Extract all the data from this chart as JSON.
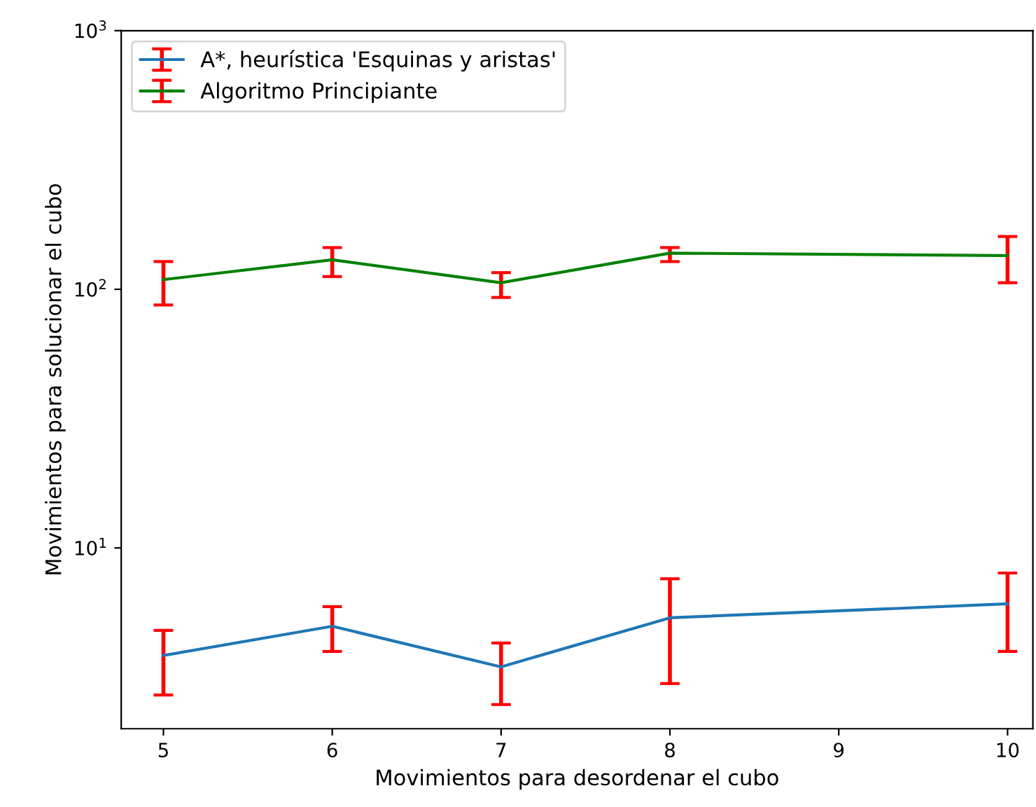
{
  "chart_data": {
    "type": "line",
    "xlabel": "Movimientos para desordenar el cubo",
    "ylabel": "Movimientos para solucionar el cubo",
    "log": "y",
    "xlim": [
      4.75,
      10.15
    ],
    "xticks": [
      5,
      6,
      7,
      8,
      9,
      10
    ],
    "ylim": [
      2,
      1000
    ],
    "yticks": [
      {
        "value": 10,
        "label": "10$^{1}$"
      },
      {
        "value": 100,
        "label": "10$^{2}$"
      },
      {
        "value": 1000,
        "label": "10$^{3}$"
      }
    ],
    "grid": false,
    "legend": "top left",
    "x": [
      5,
      6,
      7,
      8,
      10
    ],
    "series": [
      {
        "name": "A*, heurística 'Esquinas y aristas'",
        "color": "#1f77b4",
        "values": [
          3.84,
          4.98,
          3.47,
          5.37,
          6.08
        ],
        "errors": [
          [
            2.7,
            4.8
          ],
          [
            3.98,
            5.93
          ],
          [
            2.48,
            4.29
          ],
          [
            2.99,
            7.6
          ],
          [
            3.98,
            8.0
          ]
        ]
      },
      {
        "name": "Algoritmo Principiante",
        "color": "#008000",
        "values": [
          109,
          130,
          106,
          138,
          135
        ],
        "errors": [
          [
            87,
            128
          ],
          [
            112,
            145
          ],
          [
            93,
            116
          ],
          [
            128,
            145
          ],
          [
            106,
            160
          ]
        ]
      }
    ]
  }
}
